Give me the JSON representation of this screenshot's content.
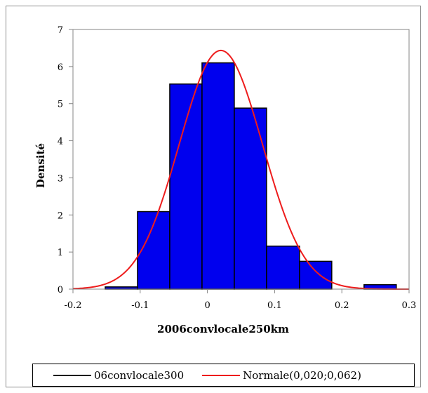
{
  "chart_data": {
    "type": "bar",
    "xlabel": "2006convlocale250km",
    "ylabel": "Densité",
    "xlim": [
      -0.2,
      0.3
    ],
    "ylim": [
      0,
      7
    ],
    "x_ticks": [
      "-0.2",
      "-0.1",
      "0",
      "0.1",
      "0.2",
      "0.3"
    ],
    "y_ticks": [
      "0",
      "1",
      "2",
      "3",
      "4",
      "5",
      "6",
      "7"
    ],
    "grid": false,
    "legend_position": "bottom",
    "bars": [
      {
        "x0": -0.152,
        "x1": -0.104,
        "value": 0.06
      },
      {
        "x0": -0.104,
        "x1": -0.056,
        "value": 2.09
      },
      {
        "x0": -0.056,
        "x1": -0.008,
        "value": 5.53
      },
      {
        "x0": -0.008,
        "x1": 0.04,
        "value": 6.1
      },
      {
        "x0": 0.04,
        "x1": 0.088,
        "value": 4.88
      },
      {
        "x0": 0.088,
        "x1": 0.137,
        "value": 1.16
      },
      {
        "x0": 0.137,
        "x1": 0.185,
        "value": 0.75
      },
      {
        "x0": 0.185,
        "x1": 0.233,
        "value": 0.0
      },
      {
        "x0": 0.233,
        "x1": 0.281,
        "value": 0.12
      }
    ],
    "normal_curve": {
      "mean": 0.02,
      "sd": 0.062,
      "color": "#ee1c1c"
    },
    "bar_color": "#0000ee",
    "series": [
      {
        "name": "06convlocale300",
        "color": "#000000"
      },
      {
        "name": "Normale(0,020;0,062)",
        "color": "#ee1c1c"
      }
    ]
  }
}
